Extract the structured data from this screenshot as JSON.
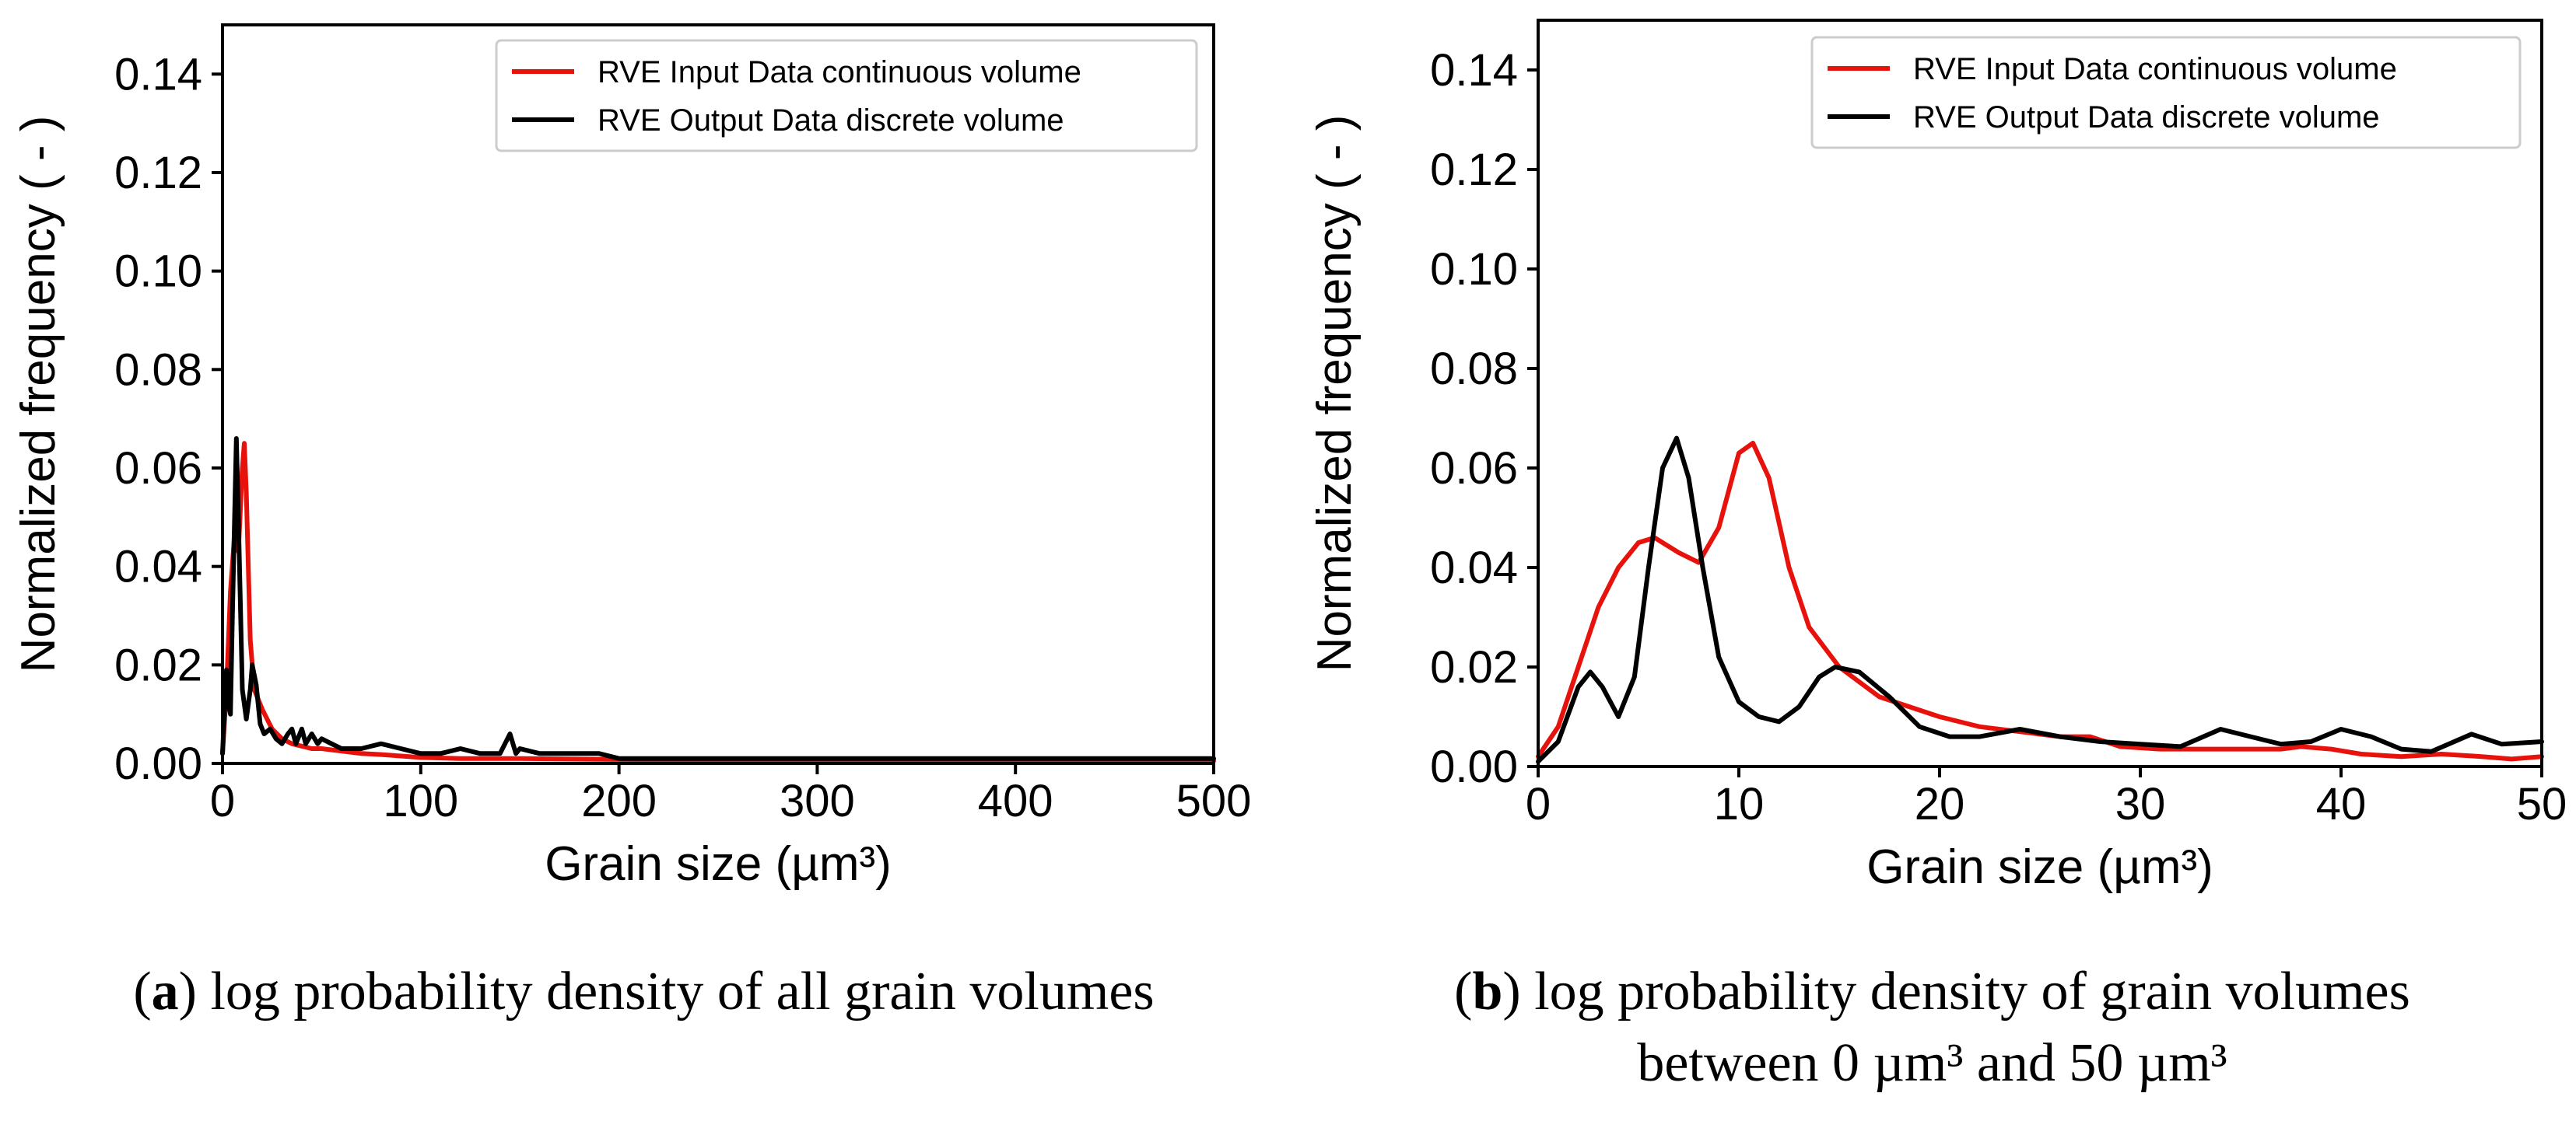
{
  "chart_data": [
    {
      "type": "line",
      "title": "",
      "xlabel": "Grain size (µm³)",
      "ylabel": "Normalized frequency ( - )",
      "xlim": [
        0,
        500
      ],
      "ylim": [
        0,
        0.15
      ],
      "xticks": [
        0,
        100,
        200,
        300,
        400,
        500
      ],
      "xtick_labels": [
        "0",
        "100",
        "200",
        "300",
        "400",
        "500"
      ],
      "yticks": [
        0,
        0.02,
        0.04,
        0.06,
        0.08,
        0.1,
        0.12,
        0.14
      ],
      "ytick_labels": [
        "0.00",
        "0.02",
        "0.04",
        "0.06",
        "0.08",
        "0.10",
        "0.12",
        "0.14"
      ],
      "grid": false,
      "legend_position": "top-right",
      "series": [
        {
          "name": "RVE Input Data continuous volume",
          "color": "#e8120c",
          "x": [
            0,
            2,
            4,
            6,
            8,
            10,
            11,
            12,
            14,
            16,
            20,
            25,
            30,
            35,
            40,
            45,
            50,
            60,
            70,
            80,
            90,
            100,
            120,
            150,
            200,
            250,
            300,
            350,
            400,
            450,
            500
          ],
          "y": [
            0.002,
            0.015,
            0.035,
            0.046,
            0.043,
            0.06,
            0.065,
            0.055,
            0.025,
            0.015,
            0.011,
            0.007,
            0.005,
            0.004,
            0.0035,
            0.003,
            0.003,
            0.0025,
            0.002,
            0.0018,
            0.0015,
            0.0012,
            0.001,
            0.001,
            0.0008,
            0.0007,
            0.0006,
            0.0006,
            0.0005,
            0.0005,
            0.0005
          ]
        },
        {
          "name": "RVE Output Data discrete volume",
          "color": "#000000",
          "x": [
            0,
            2,
            3,
            4,
            5,
            7,
            8,
            10,
            12,
            14,
            15,
            17,
            19,
            21,
            24,
            27,
            30,
            33,
            35,
            37,
            40,
            42,
            45,
            48,
            50,
            55,
            60,
            70,
            80,
            90,
            100,
            110,
            120,
            130,
            140,
            145,
            148,
            150,
            160,
            175,
            190,
            200,
            220,
            250,
            280,
            300,
            330,
            360,
            400,
            450,
            500
          ],
          "y": [
            0.002,
            0.019,
            0.012,
            0.01,
            0.03,
            0.066,
            0.05,
            0.015,
            0.009,
            0.015,
            0.02,
            0.016,
            0.008,
            0.006,
            0.007,
            0.005,
            0.004,
            0.006,
            0.007,
            0.004,
            0.007,
            0.004,
            0.006,
            0.004,
            0.005,
            0.004,
            0.003,
            0.003,
            0.004,
            0.003,
            0.002,
            0.002,
            0.003,
            0.002,
            0.002,
            0.006,
            0.002,
            0.003,
            0.002,
            0.002,
            0.002,
            0.001,
            0.001,
            0.001,
            0.001,
            0.001,
            0.001,
            0.001,
            0.001,
            0.001,
            0.001
          ]
        }
      ],
      "caption_label": "a",
      "caption_text": "log probability density of all grain volumes"
    },
    {
      "type": "line",
      "title": "",
      "xlabel": "Grain size (µm³)",
      "ylabel": "Normalized frequency ( - )",
      "xlim": [
        0,
        50
      ],
      "ylim": [
        0,
        0.15
      ],
      "xticks": [
        0,
        10,
        20,
        30,
        40,
        50
      ],
      "xtick_labels": [
        "0",
        "10",
        "20",
        "30",
        "40",
        "50"
      ],
      "yticks": [
        0,
        0.02,
        0.04,
        0.06,
        0.08,
        0.1,
        0.12,
        0.14
      ],
      "ytick_labels": [
        "0.00",
        "0.02",
        "0.04",
        "0.06",
        "0.08",
        "0.10",
        "0.12",
        "0.14"
      ],
      "grid": false,
      "legend_position": "top-right",
      "series": [
        {
          "name": "RVE Input Data continuous volume",
          "color": "#e8120c",
          "x": [
            0,
            1,
            2,
            3,
            4,
            5,
            5.8,
            7,
            8,
            9,
            10,
            10.7,
            11.5,
            12.5,
            13.5,
            15,
            17,
            20,
            22,
            24,
            26,
            27.5,
            29,
            31,
            33,
            35,
            37,
            38,
            39.5,
            41,
            43,
            45,
            47,
            48.5,
            50
          ],
          "y": [
            0.002,
            0.008,
            0.02,
            0.032,
            0.04,
            0.045,
            0.046,
            0.043,
            0.041,
            0.048,
            0.063,
            0.065,
            0.058,
            0.04,
            0.028,
            0.02,
            0.014,
            0.01,
            0.008,
            0.007,
            0.006,
            0.006,
            0.004,
            0.0035,
            0.0035,
            0.0035,
            0.0035,
            0.004,
            0.0035,
            0.0025,
            0.002,
            0.0025,
            0.002,
            0.0015,
            0.002
          ]
        },
        {
          "name": "RVE Output Data discrete volume",
          "color": "#000000",
          "x": [
            0,
            1,
            2,
            2.6,
            3.2,
            4,
            4.8,
            5.5,
            6.2,
            6.9,
            7.5,
            8.2,
            9,
            10,
            11,
            12,
            13,
            14,
            14.8,
            16,
            17.5,
            19,
            20.5,
            22,
            24,
            26,
            28,
            30,
            32,
            34,
            35.5,
            37,
            38.5,
            40,
            41.5,
            43,
            44.5,
            46.5,
            48,
            50
          ],
          "y": [
            0.001,
            0.005,
            0.016,
            0.019,
            0.016,
            0.01,
            0.018,
            0.04,
            0.06,
            0.066,
            0.058,
            0.04,
            0.022,
            0.013,
            0.01,
            0.009,
            0.012,
            0.018,
            0.02,
            0.019,
            0.014,
            0.008,
            0.006,
            0.006,
            0.0075,
            0.006,
            0.005,
            0.0045,
            0.004,
            0.0075,
            0.006,
            0.0045,
            0.005,
            0.0075,
            0.006,
            0.0035,
            0.003,
            0.0065,
            0.0045,
            0.005
          ]
        }
      ],
      "caption_label": "b",
      "caption_text": "log probability density of grain volumes",
      "caption_line2": "between 0 µm³ and 50 µm³"
    }
  ]
}
